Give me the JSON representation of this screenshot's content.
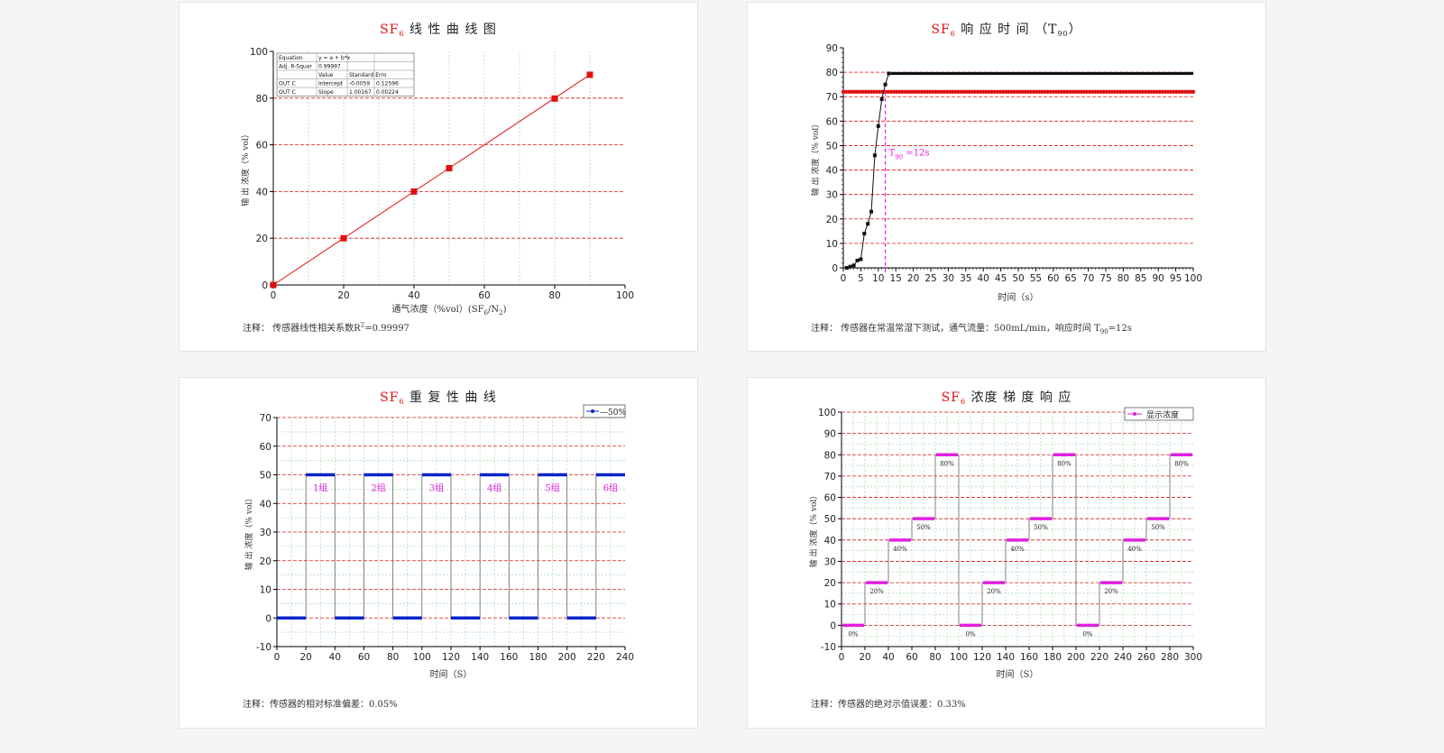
{
  "colors": {
    "red": "#e01010",
    "grid_red": "#d81b1b",
    "grid_green": "#a8dca8",
    "black": "#111111",
    "blue": "#0a24c8",
    "magenta": "#e020e0"
  },
  "charts": [
    {
      "type": "line",
      "title_prefix": "SF",
      "title_sub": "6",
      "title_rest": "线 性 曲 线 图",
      "xlabel": "通气浓度（%vol）(SF",
      "xlabel_sub1": "6",
      "xlabel_mid": "/N",
      "xlabel_sub2": "2",
      "xlabel_end": ")",
      "ylabel": "输 出 浓度（% vol）",
      "xlim": [
        0,
        100
      ],
      "ylim": [
        0,
        100
      ],
      "xticks": [
        0,
        20,
        40,
        60,
        80,
        100
      ],
      "yticks": [
        0,
        20,
        40,
        60,
        80,
        100
      ],
      "x": [
        0,
        20,
        40,
        50,
        80,
        90
      ],
      "y": [
        0,
        20,
        40,
        50,
        79.8,
        90
      ],
      "fit_table": {
        "rows": [
          [
            "Equation",
            "y = a + b*x",
            ""
          ],
          [
            "Adj. R-Squar",
            "0.99997",
            ""
          ],
          [
            "",
            "Value",
            "Standard Erro"
          ],
          [
            "OUT C",
            "Intercept",
            "-0.0059",
            "0.12596"
          ],
          [
            "OUT C",
            "Slope",
            "1.00167",
            "0.00224"
          ]
        ]
      },
      "note_text": "注释：  传感器线性相关系数R",
      "note_sup": "2",
      "note_end": "=0.99997"
    },
    {
      "type": "line",
      "title_prefix": "SF",
      "title_sub": "6",
      "title_rest": "响 应 时 间  （T",
      "title_sub2": "90",
      "title_end": "）",
      "xlabel": "时间（s）",
      "ylabel": "输 出 浓度（% vol）",
      "xlim": [
        0,
        100
      ],
      "ylim": [
        0,
        90
      ],
      "xticks": [
        0,
        5,
        10,
        15,
        20,
        25,
        30,
        35,
        40,
        45,
        50,
        55,
        60,
        65,
        70,
        75,
        80,
        85,
        90,
        95,
        100
      ],
      "yticks": [
        0,
        10,
        20,
        30,
        40,
        50,
        60,
        70,
        80,
        90
      ],
      "series": [
        {
          "x": [
            1,
            2,
            3,
            4,
            5,
            6,
            7,
            8,
            9,
            10,
            11,
            12,
            13
          ],
          "y": [
            0,
            0.5,
            1,
            3,
            3.5,
            14,
            18,
            23,
            46,
            58,
            69,
            75,
            79.5
          ],
          "plateau": 79.5
        },
        {
          "ref": 72
        }
      ],
      "annotation_T": "T",
      "annotation_sub": "90",
      "annotation_rest": "=12s",
      "annotation_x": 12,
      "note_text": "注释：  传感器在常温常湿下测试，通气流量：500mL/min，响应时间 T",
      "note_sub": "90",
      "note_end": "=12s"
    },
    {
      "type": "line",
      "title_prefix": "SF",
      "title_sub": "6",
      "title_rest": "重 复 性 曲 线",
      "xlabel": "时间（S）",
      "ylabel": "输 出 浓度（% vol）",
      "legend": "50%",
      "legend_position": "top-right",
      "xlim": [
        0,
        240
      ],
      "ylim": [
        -10,
        70
      ],
      "xticks": [
        0,
        20,
        40,
        60,
        80,
        100,
        120,
        140,
        160,
        180,
        200,
        220,
        240
      ],
      "yticks": [
        -10,
        0,
        10,
        20,
        30,
        40,
        50,
        60,
        70
      ],
      "groups": [
        {
          "label": "1组",
          "on": 20,
          "off": 40
        },
        {
          "label": "2组",
          "on": 60,
          "off": 80
        },
        {
          "label": "3组",
          "on": 100,
          "off": 120
        },
        {
          "label": "4组",
          "on": 140,
          "off": 160
        },
        {
          "label": "5组",
          "on": 180,
          "off": 200
        },
        {
          "label": "6组",
          "on": 220,
          "off": 240
        }
      ],
      "level": 50,
      "note_text": "注释：传感器的相对标准偏差：0.05%"
    },
    {
      "type": "line",
      "title_prefix": "SF",
      "title_sub": "6",
      "title_rest": "浓度 梯 度 响 应",
      "xlabel": "时间（S）",
      "ylabel": "输 出 浓度（% vol）",
      "legend": "显示浓度",
      "legend_position": "top-right",
      "xlim": [
        0,
        300
      ],
      "ylim": [
        -10,
        100
      ],
      "xticks": [
        0,
        20,
        40,
        60,
        80,
        100,
        120,
        140,
        160,
        180,
        200,
        220,
        240,
        260,
        280,
        300
      ],
      "yticks": [
        -10,
        0,
        10,
        20,
        30,
        40,
        50,
        60,
        70,
        80,
        90,
        100
      ],
      "steps": [
        {
          "x0": 0,
          "x1": 20,
          "y": 0,
          "label": "0%"
        },
        {
          "x0": 20,
          "x1": 40,
          "y": 20,
          "label": "20%"
        },
        {
          "x0": 40,
          "x1": 60,
          "y": 40,
          "label": "40%"
        },
        {
          "x0": 60,
          "x1": 80,
          "y": 50,
          "label": "50%"
        },
        {
          "x0": 80,
          "x1": 100,
          "y": 80,
          "label": "80%"
        },
        {
          "x0": 100,
          "x1": 120,
          "y": 0,
          "label": "0%"
        },
        {
          "x0": 120,
          "x1": 140,
          "y": 20,
          "label": "20%"
        },
        {
          "x0": 140,
          "x1": 160,
          "y": 40,
          "label": "40%"
        },
        {
          "x0": 160,
          "x1": 180,
          "y": 50,
          "label": "50%"
        },
        {
          "x0": 180,
          "x1": 200,
          "y": 80,
          "label": "80%"
        },
        {
          "x0": 200,
          "x1": 220,
          "y": 0,
          "label": "0%"
        },
        {
          "x0": 220,
          "x1": 240,
          "y": 20,
          "label": "20%"
        },
        {
          "x0": 240,
          "x1": 260,
          "y": 40,
          "label": "40%"
        },
        {
          "x0": 260,
          "x1": 280,
          "y": 50,
          "label": "50%"
        },
        {
          "x0": 280,
          "x1": 300,
          "y": 80,
          "label": "80%"
        }
      ],
      "note_text": "注释：传感器的绝对示值误差：0.33%"
    }
  ]
}
